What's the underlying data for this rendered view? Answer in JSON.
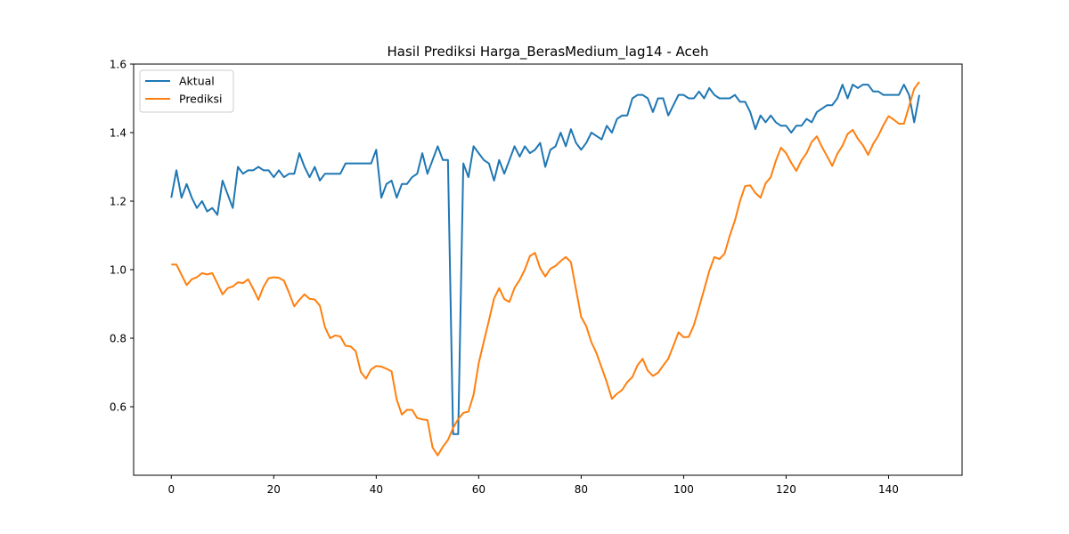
{
  "chart_data": {
    "type": "line",
    "title": "Hasil Prediksi Harga_BerasMedium_lag14 - Aceh",
    "xlabel": "",
    "ylabel": "",
    "xlim": [
      -7.35,
      154.35
    ],
    "ylim": [
      0.4,
      1.6
    ],
    "xticks": [
      0,
      20,
      40,
      60,
      80,
      100,
      120,
      140
    ],
    "yticks": [
      0.6,
      0.8,
      1.0,
      1.2,
      1.4,
      1.6
    ],
    "ytick_labels": [
      "0.6",
      "0.8",
      "1.0",
      "1.2",
      "1.4",
      "1.6"
    ],
    "grid": false,
    "legend_position": "upper-left",
    "series": [
      {
        "name": "Aktual",
        "color": "#1f77b4",
        "values": [
          1.21,
          1.29,
          1.21,
          1.25,
          1.21,
          1.18,
          1.2,
          1.17,
          1.18,
          1.16,
          1.26,
          1.22,
          1.18,
          1.3,
          1.28,
          1.29,
          1.29,
          1.3,
          1.29,
          1.29,
          1.27,
          1.29,
          1.27,
          1.28,
          1.28,
          1.34,
          1.3,
          1.27,
          1.3,
          1.26,
          1.28,
          1.28,
          1.28,
          1.28,
          1.31,
          1.31,
          1.31,
          1.31,
          1.31,
          1.31,
          1.35,
          1.21,
          1.25,
          1.26,
          1.21,
          1.25,
          1.25,
          1.27,
          1.28,
          1.34,
          1.28,
          1.32,
          1.36,
          1.32,
          1.32,
          0.52,
          0.52,
          1.31,
          1.27,
          1.36,
          1.34,
          1.32,
          1.31,
          1.26,
          1.32,
          1.28,
          1.32,
          1.36,
          1.33,
          1.36,
          1.34,
          1.35,
          1.37,
          1.3,
          1.35,
          1.36,
          1.4,
          1.36,
          1.41,
          1.37,
          1.35,
          1.37,
          1.4,
          1.39,
          1.38,
          1.42,
          1.4,
          1.44,
          1.45,
          1.45,
          1.5,
          1.51,
          1.51,
          1.5,
          1.46,
          1.5,
          1.5,
          1.45,
          1.48,
          1.51,
          1.51,
          1.5,
          1.5,
          1.52,
          1.5,
          1.53,
          1.51,
          1.5,
          1.5,
          1.5,
          1.51,
          1.49,
          1.49,
          1.46,
          1.41,
          1.45,
          1.43,
          1.45,
          1.43,
          1.42,
          1.42,
          1.4,
          1.42,
          1.42,
          1.44,
          1.43,
          1.46,
          1.47,
          1.48,
          1.48,
          1.5,
          1.54,
          1.5,
          1.54,
          1.53,
          1.54,
          1.54,
          1.52,
          1.52,
          1.51,
          1.51,
          1.51,
          1.51,
          1.54,
          1.51,
          1.43,
          1.51
        ]
      },
      {
        "name": "Prediksi",
        "color": "#ff7f0e",
        "values": [
          1.015,
          1.015,
          0.985,
          0.955,
          0.972,
          0.978,
          0.99,
          0.986,
          0.99,
          0.96,
          0.928,
          0.946,
          0.951,
          0.963,
          0.961,
          0.972,
          0.944,
          0.912,
          0.95,
          0.975,
          0.978,
          0.976,
          0.968,
          0.932,
          0.893,
          0.912,
          0.928,
          0.915,
          0.913,
          0.895,
          0.832,
          0.8,
          0.808,
          0.805,
          0.778,
          0.776,
          0.762,
          0.701,
          0.682,
          0.709,
          0.719,
          0.717,
          0.711,
          0.703,
          0.621,
          0.577,
          0.591,
          0.591,
          0.567,
          0.563,
          0.561,
          0.481,
          0.458,
          0.483,
          0.503,
          0.538,
          0.564,
          0.582,
          0.586,
          0.635,
          0.727,
          0.79,
          0.852,
          0.916,
          0.946,
          0.914,
          0.906,
          0.947,
          0.97,
          1.0,
          1.04,
          1.049,
          1.004,
          0.98,
          1.003,
          1.011,
          1.025,
          1.037,
          1.022,
          0.942,
          0.862,
          0.835,
          0.788,
          0.756,
          0.714,
          0.672,
          0.623,
          0.638,
          0.649,
          0.672,
          0.687,
          0.721,
          0.74,
          0.705,
          0.69,
          0.699,
          0.72,
          0.74,
          0.778,
          0.817,
          0.803,
          0.804,
          0.838,
          0.889,
          0.942,
          0.996,
          1.037,
          1.031,
          1.047,
          1.099,
          1.143,
          1.2,
          1.244,
          1.246,
          1.224,
          1.21,
          1.252,
          1.27,
          1.318,
          1.356,
          1.34,
          1.312,
          1.288,
          1.319,
          1.34,
          1.373,
          1.389,
          1.358,
          1.331,
          1.303,
          1.338,
          1.362,
          1.396,
          1.408,
          1.382,
          1.363,
          1.335,
          1.367,
          1.391,
          1.422,
          1.448,
          1.438,
          1.426,
          1.426,
          1.477,
          1.528,
          1.548
        ]
      }
    ]
  }
}
